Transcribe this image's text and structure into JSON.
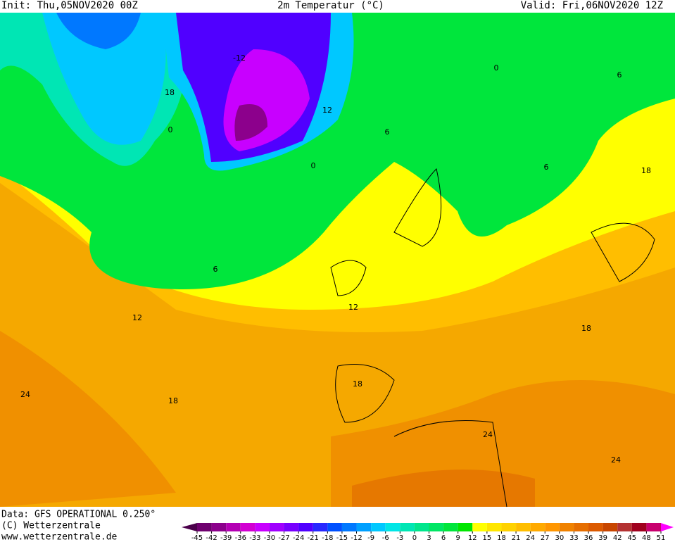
{
  "header": {
    "init": "Init: Thu,05NOV2020 00Z",
    "title": "2m Temperatur (°C)",
    "valid": "Valid: Fri,06NOV2020 12Z"
  },
  "contour_labels": [
    "-12",
    "12",
    "18",
    "0",
    "0",
    "6",
    "0",
    "6",
    "6",
    "18",
    "6",
    "12",
    "12",
    "18",
    "18",
    "18",
    "24",
    "24",
    "24"
  ],
  "footer": {
    "data": "Data: GFS OPERATIONAL 0.250°",
    "copyright": "(C) Wetterzentrale",
    "url": "www.wetterzentrale.de"
  },
  "colorbar": {
    "ticks": [
      -45,
      -42,
      -39,
      -36,
      -33,
      -30,
      -27,
      -24,
      -21,
      -18,
      -15,
      -12,
      -9,
      -6,
      -3,
      0,
      3,
      6,
      9,
      12,
      15,
      18,
      21,
      24,
      27,
      30,
      33,
      36,
      39,
      42,
      45,
      48,
      51
    ],
    "colors": [
      "#4b004b",
      "#6e006e",
      "#8c008c",
      "#b400b4",
      "#d200d2",
      "#c800ff",
      "#a000ff",
      "#7800ff",
      "#5000ff",
      "#2828ff",
      "#0050ff",
      "#0078ff",
      "#00a0ff",
      "#00c8ff",
      "#00e6e6",
      "#00e6b4",
      "#00e68c",
      "#00e664",
      "#00e63c",
      "#00e600",
      "#ffff00",
      "#ffe600",
      "#ffd200",
      "#ffbe00",
      "#ffaa00",
      "#ff9600",
      "#f08200",
      "#e66e00",
      "#dc5a00",
      "#c84600",
      "#b43232",
      "#a0001e",
      "#c8006e",
      "#ff00ff"
    ]
  }
}
